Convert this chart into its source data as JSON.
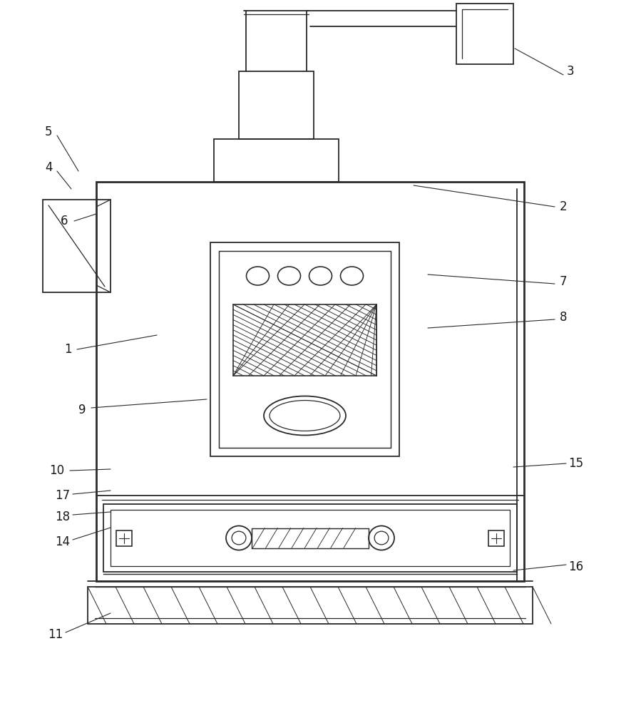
{
  "bg_color": "#ffffff",
  "line_color": "#2a2a2a",
  "lw": 1.3,
  "fig_width": 8.99,
  "fig_height": 10.0
}
